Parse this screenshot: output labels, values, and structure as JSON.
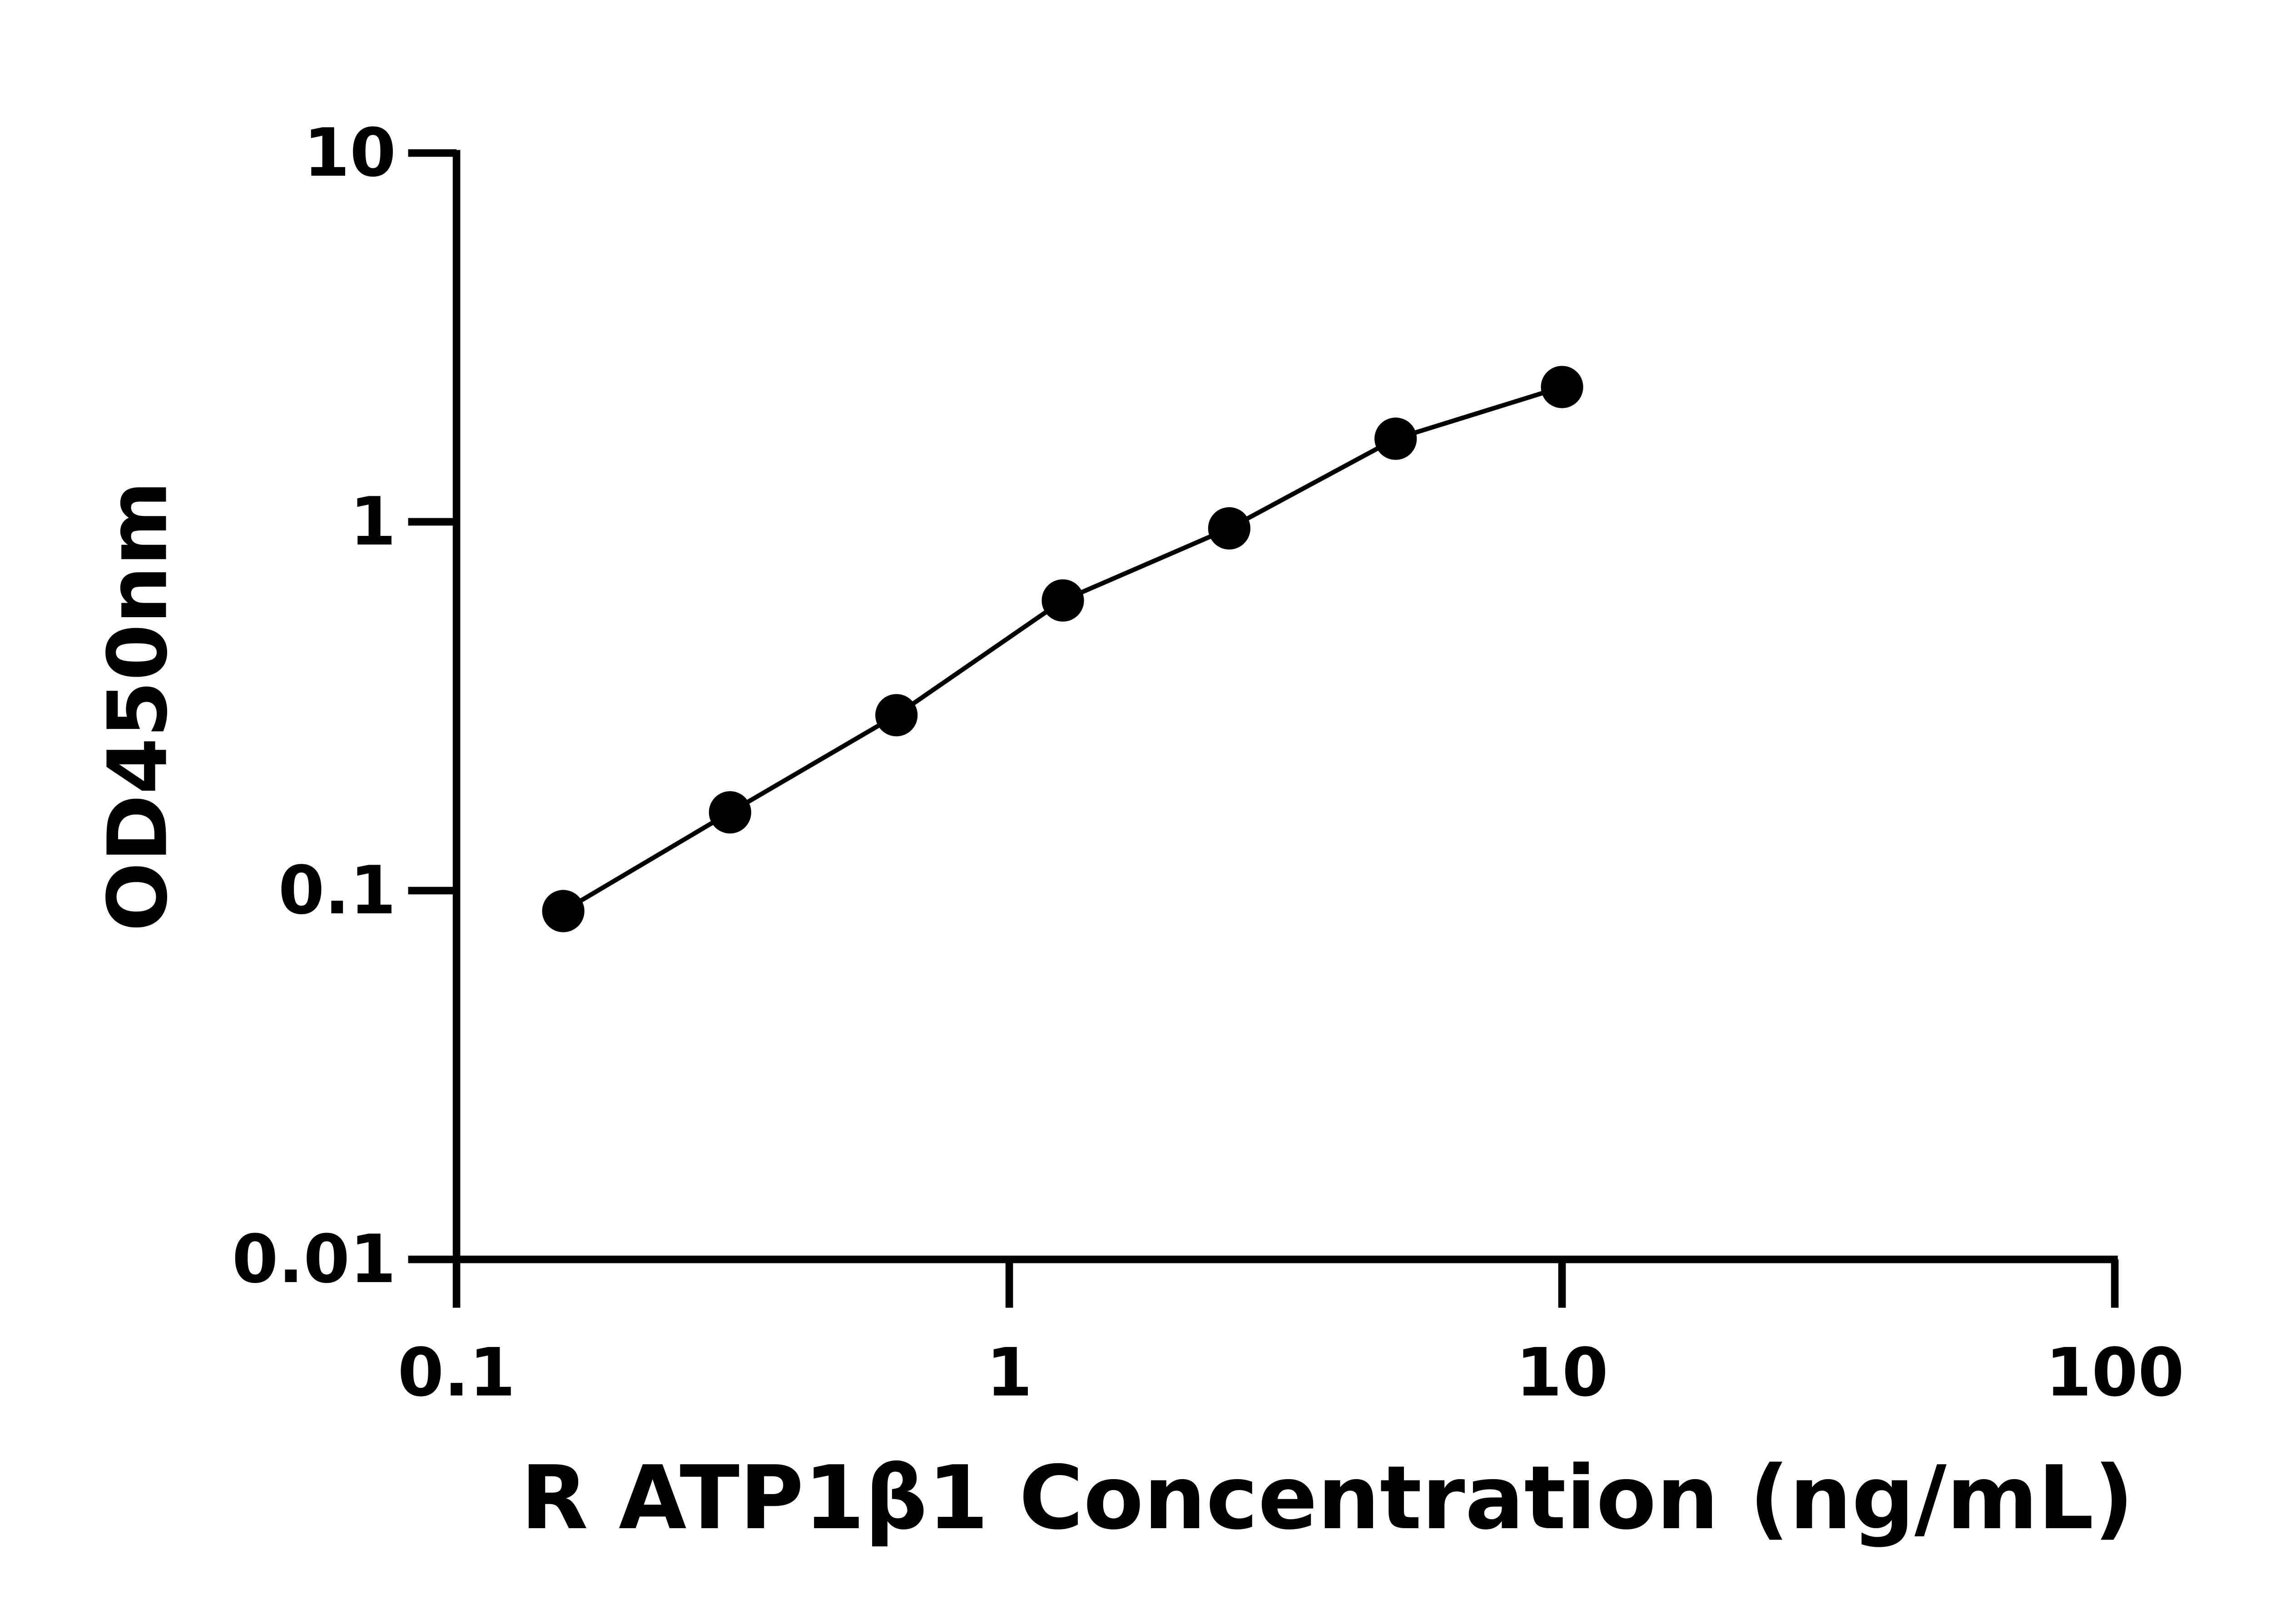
{
  "chart_data": {
    "type": "scatter",
    "x_label": "R ATP1β1 Concentration (ng/mL)",
    "y_label": "OD450nm",
    "x": [
      0.156,
      0.3125,
      0.625,
      1.25,
      2.5,
      5,
      10
    ],
    "series": [
      {
        "color": "#000000",
        "values": [
          0.088,
          0.163,
          0.299,
          0.612,
          0.96,
          1.68,
          2.32
        ]
      }
    ],
    "fit_line": true,
    "x_log": true,
    "y_log": true,
    "xlim": [
      0.1,
      100
    ],
    "ylim": [
      0.01,
      10
    ],
    "xticks": [
      0.1,
      1,
      10,
      100
    ],
    "yticks": [
      0.01,
      0.1,
      1,
      10
    ]
  }
}
